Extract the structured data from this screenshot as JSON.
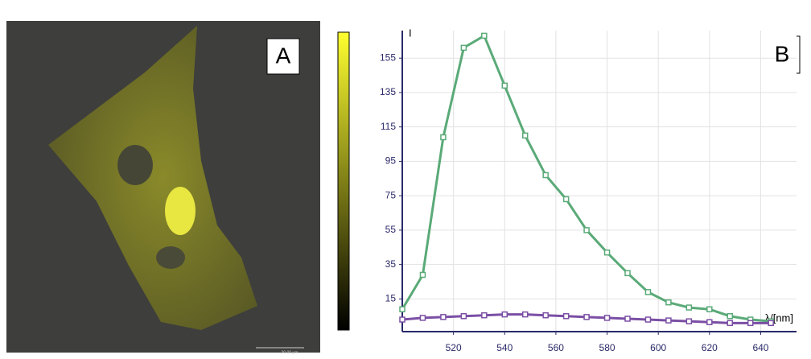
{
  "panel_a": {
    "label": "A",
    "scale_bar": "20.00 µm"
  },
  "chart_data": {
    "type": "line",
    "panel_label": "B",
    "y_label": "I",
    "x_label": "λ/[nm]",
    "xlim": [
      500,
      654
    ],
    "ylim": [
      -4,
      171
    ],
    "xticks": [
      520,
      540,
      560,
      580,
      600,
      620,
      640
    ],
    "yticks": [
      15,
      35,
      55,
      75,
      95,
      115,
      135,
      155
    ],
    "grid": true,
    "x": [
      500,
      508,
      516,
      524,
      532,
      540,
      548,
      556,
      564,
      572,
      580,
      588,
      596,
      604,
      612,
      620,
      628,
      636,
      644
    ],
    "series": [
      {
        "color": "#5aaa78",
        "values": [
          9,
          29,
          109,
          161,
          168,
          139,
          110,
          87,
          73,
          55,
          42,
          30,
          19,
          13,
          10,
          9,
          5,
          3,
          2
        ]
      },
      {
        "color": "#7b4fa5",
        "values": [
          3,
          4,
          4.5,
          5,
          5.5,
          6,
          6,
          5.5,
          5,
          4.5,
          4,
          3.5,
          3,
          2.5,
          2,
          1.5,
          1,
          1,
          1
        ]
      }
    ]
  }
}
